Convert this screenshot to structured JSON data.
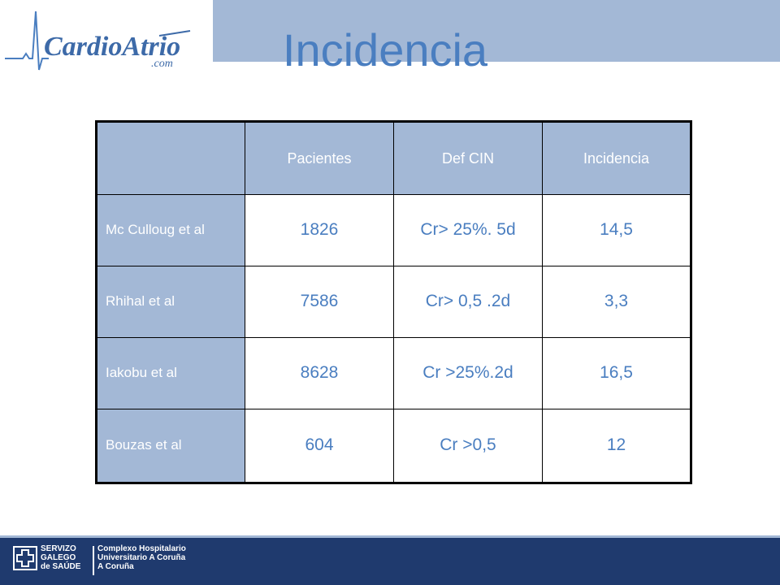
{
  "header": {
    "title": "Incidencia",
    "logo_text": "CardioAtrio",
    "logo_subtext": ".com"
  },
  "table": {
    "columns": [
      "",
      "Pacientes",
      "Def CIN",
      "Incidencia"
    ],
    "rows": [
      {
        "label": "Mc Culloug et al",
        "pacientes": "1826",
        "def_cin": "Cr> 25%. 5d",
        "incidencia": "14,5"
      },
      {
        "label": "Rhihal et al",
        "pacientes": "7586",
        "def_cin": "Cr> 0,5 .2d",
        "incidencia": "3,3"
      },
      {
        "label": "Iakobu et al",
        "pacientes": "8628",
        "def_cin": "Cr >25%.2d",
        "incidencia": "16,5"
      },
      {
        "label": "Bouzas et al",
        "pacientes": "604",
        "def_cin": "Cr >0,5",
        "incidencia": "12"
      }
    ]
  },
  "footer": {
    "org_line1": "SERVIZO",
    "org_line2": "GALEGO",
    "org_line3": "de SAÚDE",
    "hosp_line1": "Complexo Hospitalario",
    "hosp_line2": "Universitario A Coruña",
    "hosp_line3": "A Coruña"
  },
  "colors": {
    "band": "#a3b8d6",
    "title": "#4a7ec0",
    "footer": "#1f3a6e"
  }
}
